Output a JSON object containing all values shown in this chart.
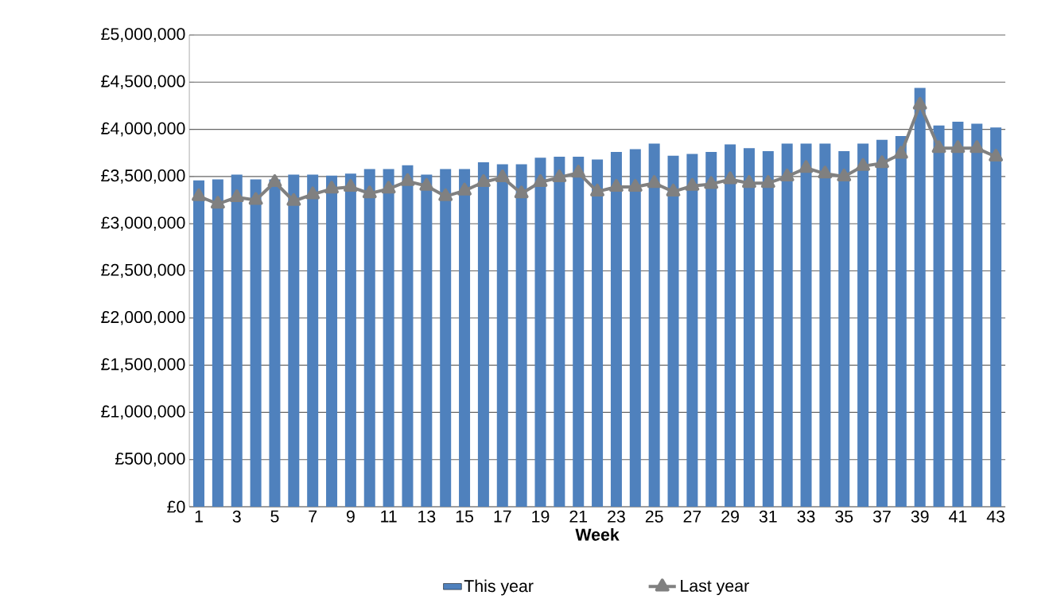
{
  "chart_data": {
    "type": "bar",
    "xlabel": "Week",
    "categories": [
      "1",
      null,
      "3",
      null,
      "5",
      null,
      "7",
      null,
      "9",
      null,
      "11",
      null,
      "13",
      null,
      "15",
      null,
      "17",
      null,
      "19",
      null,
      "21",
      null,
      "23",
      null,
      "25",
      null,
      "27",
      null,
      "29",
      null,
      "31",
      null,
      "33",
      null,
      "35",
      null,
      "37",
      null,
      "39",
      null,
      "41",
      null,
      "43"
    ],
    "series": [
      {
        "name": "This year",
        "color": "#4f81bd",
        "values": [
          3460000,
          3470000,
          3520000,
          3470000,
          3470000,
          3520000,
          3520000,
          3510000,
          3530000,
          3580000,
          3580000,
          3620000,
          3520000,
          3580000,
          3580000,
          3650000,
          3630000,
          3630000,
          3700000,
          3710000,
          3710000,
          3680000,
          3760000,
          3790000,
          3850000,
          3720000,
          3740000,
          3760000,
          3840000,
          3800000,
          3770000,
          3850000,
          3850000,
          3850000,
          3770000,
          3850000,
          3890000,
          3930000,
          4440000,
          4040000,
          4080000,
          4060000,
          4020000
        ]
      },
      {
        "name": "Last year",
        "type": "line",
        "color": "#808080",
        "marker": "triangle",
        "values": [
          3290000,
          3210000,
          3280000,
          3250000,
          3440000,
          3240000,
          3310000,
          3370000,
          3390000,
          3320000,
          3370000,
          3450000,
          3400000,
          3290000,
          3350000,
          3440000,
          3490000,
          3320000,
          3440000,
          3490000,
          3540000,
          3340000,
          3390000,
          3390000,
          3430000,
          3340000,
          3400000,
          3420000,
          3470000,
          3430000,
          3430000,
          3500000,
          3590000,
          3530000,
          3500000,
          3610000,
          3640000,
          3740000,
          4260000,
          3800000,
          3800000,
          3800000,
          3710000
        ]
      }
    ],
    "ylim": [
      0,
      5000000
    ],
    "yticks": [
      {
        "value": 0,
        "label": "£0"
      },
      {
        "value": 500000,
        "label": "£500,000"
      },
      {
        "value": 1000000,
        "label": "£1,000,000"
      },
      {
        "value": 1500000,
        "label": "£1,500,000"
      },
      {
        "value": 2000000,
        "label": "£2,000,000"
      },
      {
        "value": 2500000,
        "label": "£2,500,000"
      },
      {
        "value": 3000000,
        "label": "£3,000,000"
      },
      {
        "value": 3500000,
        "label": "£3,500,000"
      },
      {
        "value": 4000000,
        "label": "£4,000,000"
      },
      {
        "value": 4500000,
        "label": "£4,500,000"
      },
      {
        "value": 5000000,
        "label": "£5,000,000"
      }
    ],
    "grid": "y",
    "legend": "bottom"
  }
}
